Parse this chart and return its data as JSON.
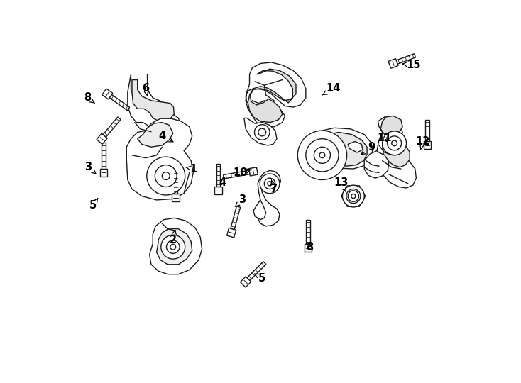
{
  "background_color": "#ffffff",
  "line_color": "#1a1a1a",
  "lw": 1.0,
  "figsize": [
    7.34,
    5.4
  ],
  "dpi": 100,
  "label_fontsize": 10.5,
  "labels_arrows": [
    [
      "1",
      [
        2.22,
        3.17
      ],
      [
        1.98,
        3.17
      ]
    ],
    [
      "2",
      [
        1.72,
        1.82
      ],
      [
        1.85,
        1.92
      ]
    ],
    [
      "3",
      [
        0.38,
        3.28
      ],
      [
        0.48,
        3.1
      ]
    ],
    [
      "3",
      [
        3.22,
        2.62
      ],
      [
        3.1,
        2.48
      ]
    ],
    [
      "4",
      [
        1.68,
        3.85
      ],
      [
        1.68,
        3.68
      ]
    ],
    [
      "4",
      [
        2.85,
        3.0
      ],
      [
        2.85,
        2.82
      ]
    ],
    [
      "5",
      [
        0.48,
        2.55
      ],
      [
        0.55,
        2.7
      ]
    ],
    [
      "5",
      [
        3.5,
        1.12
      ],
      [
        3.38,
        1.22
      ]
    ],
    [
      "6",
      [
        1.38,
        4.68
      ],
      [
        1.38,
        4.52
      ]
    ],
    [
      "7",
      [
        3.85,
        2.85
      ],
      [
        3.85,
        3.05
      ]
    ],
    [
      "8",
      [
        0.35,
        4.48
      ],
      [
        0.45,
        4.35
      ]
    ],
    [
      "8",
      [
        4.42,
        1.75
      ],
      [
        4.42,
        1.92
      ]
    ],
    [
      "9",
      [
        5.52,
        3.65
      ],
      [
        5.3,
        3.5
      ]
    ],
    [
      "10",
      [
        3.3,
        3.32
      ],
      [
        3.52,
        3.25
      ]
    ],
    [
      "11",
      [
        5.88,
        3.78
      ],
      [
        5.88,
        3.6
      ]
    ],
    [
      "12",
      [
        6.52,
        3.72
      ],
      [
        6.45,
        3.58
      ]
    ],
    [
      "13",
      [
        5.05,
        2.95
      ],
      [
        5.2,
        2.88
      ]
    ],
    [
      "14",
      [
        4.82,
        4.72
      ],
      [
        4.62,
        4.55
      ]
    ],
    [
      "15",
      [
        6.38,
        5.05
      ],
      [
        6.18,
        4.98
      ]
    ]
  ]
}
